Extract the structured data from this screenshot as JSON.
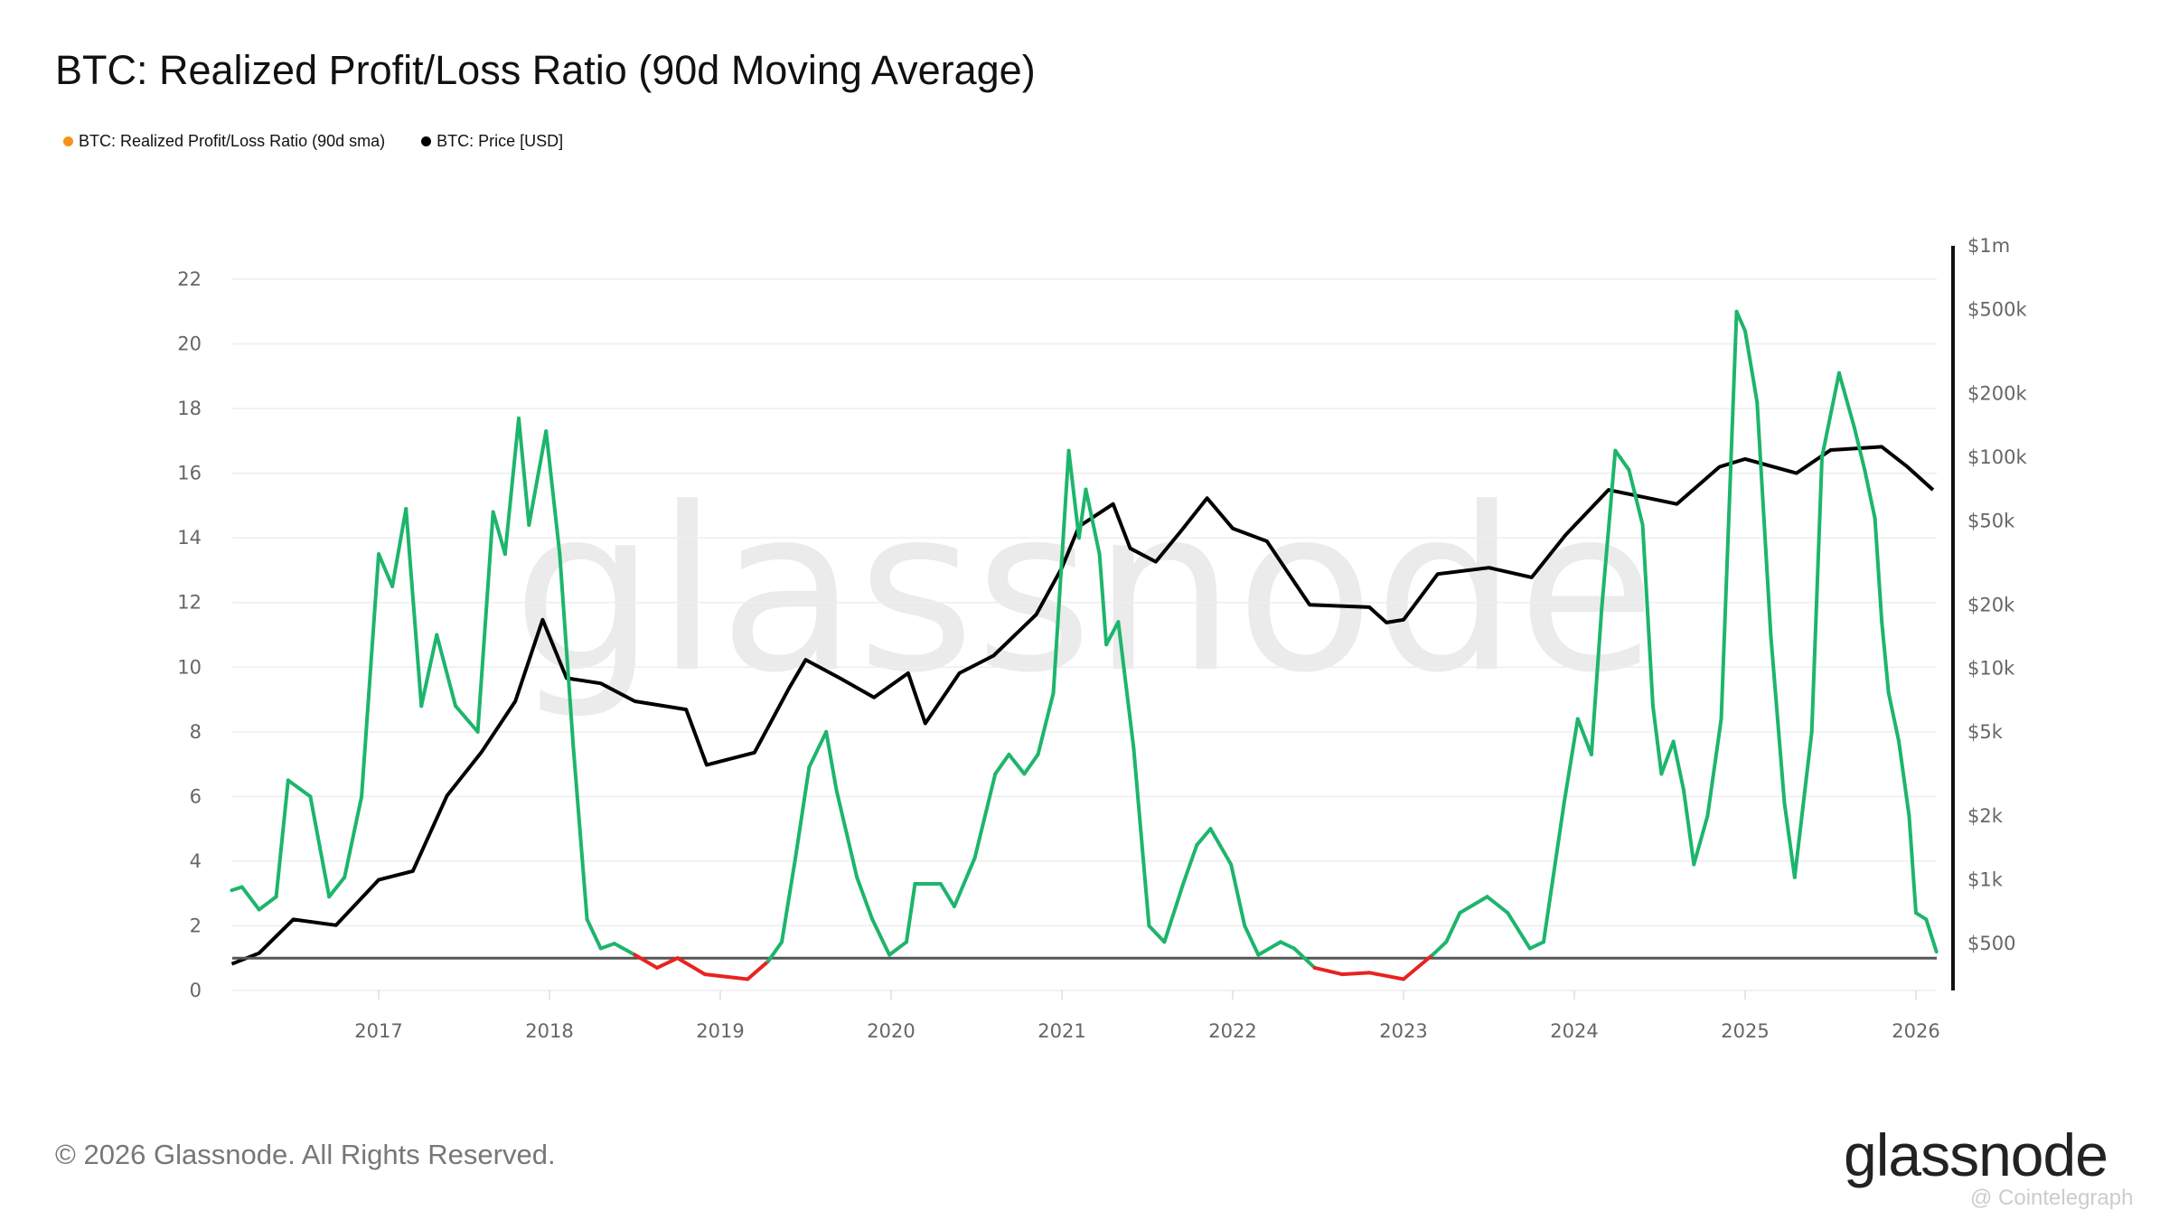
{
  "title": "BTC: Realized Profit/Loss Ratio (90d Moving Average)",
  "legend": [
    {
      "label": "BTC: Realized Profit/Loss Ratio (90d sma)",
      "color": "#f7931a"
    },
    {
      "label": "BTC: Price [USD]",
      "color": "#000000"
    }
  ],
  "watermark": "glassnode",
  "footer": "© 2026 Glassnode. All Rights Reserved.",
  "logo": "glassnode",
  "credit": "@ Cointelegraph",
  "chart_data": {
    "type": "line",
    "title": "BTC: Realized Profit/Loss Ratio (90d Moving Average)",
    "x_ticks": [
      "2017",
      "2018",
      "2019",
      "2020",
      "2021",
      "2022",
      "2023",
      "2024",
      "2025",
      "2026"
    ],
    "xlim": [
      2016.14,
      2026.12
    ],
    "y_left": {
      "ticks": [
        0,
        2,
        4,
        6,
        8,
        10,
        12,
        14,
        16,
        18,
        20,
        22
      ],
      "ylim": [
        0,
        22
      ]
    },
    "y_right": {
      "scale": "log",
      "ticks": [
        500,
        1000,
        2000,
        5000,
        10000,
        20000,
        50000,
        100000,
        200000,
        500000,
        1000000
      ],
      "tick_labels": [
        "$500",
        "$1k",
        "$2k",
        "$5k",
        "$10k",
        "$20k",
        "$50k",
        "$100k",
        "$200k",
        "$500k",
        "$1m"
      ],
      "ylim": [
        500,
        1000000
      ]
    },
    "reference_line": 1,
    "grid": true,
    "colors": {
      "profit": "#1db56c",
      "loss": "#e8231f",
      "price": "#000000",
      "reference": "#555555"
    },
    "series": [
      {
        "name": "BTC: Realized Profit/Loss Ratio (90d sma)",
        "axis": "left",
        "x": [
          2016.14,
          2016.2,
          2016.3,
          2016.4,
          2016.47,
          2016.6,
          2016.71,
          2016.8,
          2016.9,
          2017.0,
          2017.08,
          2017.16,
          2017.25,
          2017.34,
          2017.45,
          2017.58,
          2017.67,
          2017.74,
          2017.82,
          2017.88,
          2017.98,
          2018.06,
          2018.14,
          2018.22,
          2018.3,
          2018.38,
          2018.5,
          2018.63,
          2018.75,
          2018.91,
          2019.16,
          2019.28,
          2019.36,
          2019.44,
          2019.52,
          2019.62,
          2019.68,
          2019.8,
          2019.89,
          2019.99,
          2020.09,
          2020.14,
          2020.29,
          2020.37,
          2020.49,
          2020.61,
          2020.69,
          2020.78,
          2020.86,
          2020.95,
          2021.04,
          2021.1,
          2021.14,
          2021.22,
          2021.26,
          2021.33,
          2021.42,
          2021.51,
          2021.6,
          2021.71,
          2021.79,
          2021.87,
          2021.99,
          2022.07,
          2022.15,
          2022.28,
          2022.36,
          2022.48,
          2022.64,
          2022.8,
          2023.0,
          2023.17,
          2023.25,
          2023.33,
          2023.49,
          2023.61,
          2023.74,
          2023.82,
          2023.94,
          2024.02,
          2024.1,
          2024.16,
          2024.24,
          2024.32,
          2024.4,
          2024.46,
          2024.51,
          2024.58,
          2024.64,
          2024.7,
          2024.78,
          2024.86,
          2024.95,
          2025.0,
          2025.07,
          2025.15,
          2025.23,
          2025.29,
          2025.39,
          2025.45,
          2025.55,
          2025.64,
          2025.7,
          2025.76,
          2025.8,
          2025.84,
          2025.9,
          2025.96,
          2026.0,
          2026.06,
          2026.12
        ],
        "values": [
          3.1,
          3.2,
          2.5,
          2.9,
          6.5,
          6.0,
          2.9,
          3.5,
          6.0,
          13.5,
          12.5,
          14.9,
          8.8,
          11.0,
          8.8,
          8.0,
          14.8,
          13.5,
          17.7,
          14.4,
          17.3,
          13.5,
          7.5,
          2.2,
          1.3,
          1.45,
          1.1,
          0.7,
          1.0,
          0.5,
          0.35,
          0.9,
          1.5,
          4.1,
          6.9,
          8.0,
          6.2,
          3.5,
          2.2,
          1.1,
          1.5,
          3.3,
          3.3,
          2.6,
          4.1,
          6.7,
          7.3,
          6.7,
          7.3,
          9.2,
          16.7,
          14.0,
          15.5,
          13.5,
          10.7,
          11.4,
          7.5,
          2.0,
          1.5,
          3.3,
          4.5,
          5.0,
          3.9,
          2.0,
          1.1,
          1.5,
          1.3,
          0.7,
          0.5,
          0.55,
          0.35,
          1.1,
          1.5,
          2.4,
          2.9,
          2.4,
          1.3,
          1.5,
          5.8,
          8.4,
          7.3,
          11.8,
          16.7,
          16.1,
          14.4,
          8.8,
          6.7,
          7.7,
          6.2,
          3.9,
          5.4,
          8.4,
          21.0,
          20.4,
          18.2,
          11.0,
          5.8,
          3.5,
          8.0,
          16.5,
          19.1,
          17.4,
          16.1,
          14.6,
          11.4,
          9.2,
          7.7,
          5.4,
          2.4,
          2.2,
          1.2
        ]
      },
      {
        "name": "BTC: Price [USD]",
        "axis": "right",
        "x": [
          2016.14,
          2016.3,
          2016.5,
          2016.75,
          2017.0,
          2017.2,
          2017.4,
          2017.6,
          2017.8,
          2017.96,
          2018.1,
          2018.3,
          2018.5,
          2018.8,
          2018.92,
          2019.2,
          2019.4,
          2019.5,
          2019.7,
          2019.9,
          2020.1,
          2020.2,
          2020.4,
          2020.6,
          2020.85,
          2021.0,
          2021.1,
          2021.3,
          2021.4,
          2021.55,
          2021.7,
          2021.85,
          2022.0,
          2022.2,
          2022.45,
          2022.8,
          2022.9,
          2023.0,
          2023.2,
          2023.5,
          2023.75,
          2023.95,
          2024.2,
          2024.6,
          2024.85,
          2025.0,
          2025.3,
          2025.5,
          2025.8,
          2025.95,
          2026.1
        ],
        "values": [
          400,
          450,
          650,
          610,
          1000,
          1100,
          2500,
          4000,
          7000,
          17000,
          9000,
          8500,
          7000,
          6400,
          3500,
          4000,
          8000,
          11000,
          9000,
          7300,
          9500,
          5500,
          9500,
          11500,
          18000,
          30000,
          47000,
          60000,
          37000,
          32000,
          45000,
          64000,
          46000,
          40000,
          20000,
          19500,
          16500,
          17000,
          28000,
          30000,
          27000,
          43000,
          70000,
          60000,
          90000,
          98000,
          84000,
          108000,
          112000,
          90000,
          70000
        ]
      }
    ]
  }
}
